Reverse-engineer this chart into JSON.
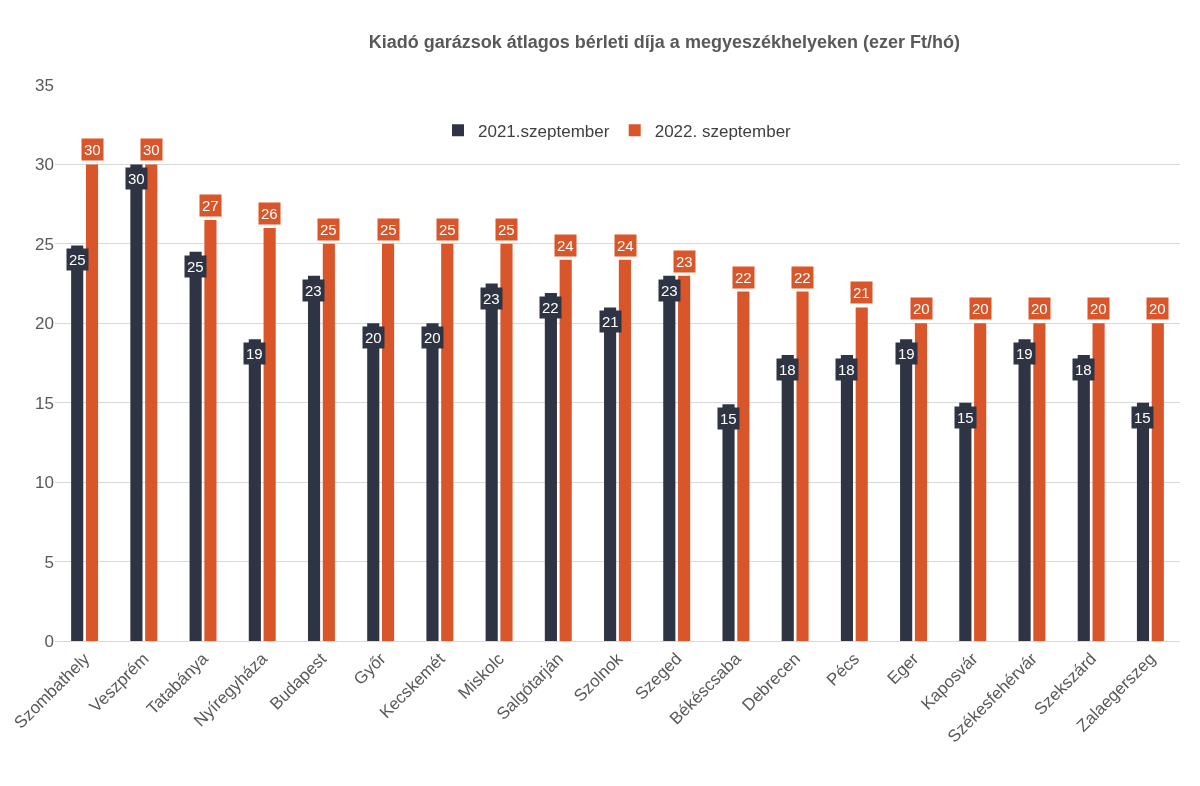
{
  "chart_data": {
    "type": "bar",
    "title": "Kiadó garázsok átlagos bérleti díja a megyeszékhelyeken (ezer Ft/hó)",
    "categories": [
      "Szombathely",
      "Veszprém",
      "Tatabánya",
      "Nyíregyháza",
      "Budapest",
      "Győr",
      "Kecskemét",
      "Miskolc",
      "Salgótarján",
      "Szolnok",
      "Szeged",
      "Békéscsaba",
      "Debrecen",
      "Pécs",
      "Eger",
      "Kaposvár",
      "Székesfehérvár",
      "Szekszárd",
      "Zalaegerszeg"
    ],
    "series": [
      {
        "name": "2021.szeptember",
        "color": "#2e3443",
        "values": [
          24.9,
          30,
          24.5,
          19,
          23,
          20,
          20,
          22.5,
          21.9,
          21,
          23,
          14.9,
          18,
          18,
          19,
          15,
          19,
          18,
          15
        ],
        "value_labels": [
          "25",
          "30",
          "25",
          "19",
          "23",
          "20",
          "20",
          "23",
          "22",
          "21",
          "23",
          "15",
          "18",
          "18",
          "19",
          "15",
          "19",
          "18",
          "15"
        ]
      },
      {
        "name": "2022. szeptember",
        "color": "#d9562a",
        "values": [
          30,
          30,
          26.5,
          26,
          25,
          25,
          25,
          25,
          24,
          24,
          23,
          22,
          22,
          21,
          20,
          20,
          20,
          20,
          20
        ],
        "value_labels": [
          "30",
          "30",
          "27",
          "26",
          "25",
          "25",
          "25",
          "25",
          "24",
          "24",
          "23",
          "22",
          "22",
          "21",
          "20",
          "20",
          "20",
          "20",
          "20"
        ]
      }
    ],
    "ylim": [
      0,
      35
    ],
    "yticks": [
      0,
      5,
      10,
      15,
      20,
      25,
      30,
      35
    ],
    "grid": "y",
    "legend": "top"
  }
}
